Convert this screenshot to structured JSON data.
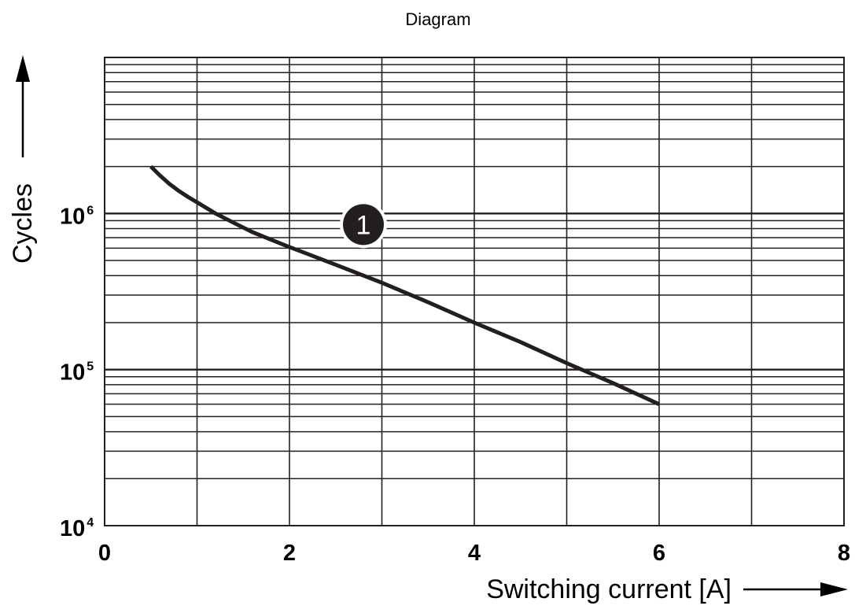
{
  "page": {
    "title": "Diagram"
  },
  "chart_data": {
    "type": "line",
    "title": "Diagram",
    "xlabel": "Switching current [A]",
    "ylabel": "Cycles",
    "x_scale": "linear",
    "y_scale": "log",
    "xlim": [
      0,
      8
    ],
    "ylim": [
      10000,
      10000000
    ],
    "grid": true,
    "x_ticks": [
      {
        "value": 0,
        "label": "0"
      },
      {
        "value": 2,
        "label": "2"
      },
      {
        "value": 4,
        "label": "4"
      },
      {
        "value": 6,
        "label": "6"
      },
      {
        "value": 8,
        "label": "8"
      }
    ],
    "y_ticks": [
      {
        "value": 10000,
        "base": "10",
        "exp": "4"
      },
      {
        "value": 100000,
        "base": "10",
        "exp": "5"
      },
      {
        "value": 1000000,
        "base": "10",
        "exp": "6"
      }
    ],
    "series": [
      {
        "x": [
          0.5,
          0.6,
          0.7,
          0.8,
          0.9,
          1.0,
          1.2,
          1.4,
          1.6,
          1.8,
          2.0,
          2.5,
          3.0,
          3.5,
          4.0,
          4.5,
          5.0,
          5.5,
          6.0
        ],
        "y": [
          2000000,
          1750000,
          1550000,
          1400000,
          1280000,
          1180000,
          1000000,
          870000,
          760000,
          680000,
          610000,
          470000,
          360000,
          270000,
          200000,
          150000,
          110000,
          82000,
          60000
        ]
      }
    ],
    "annotations": [
      {
        "label": "1",
        "x": 2.8,
        "y": 850000
      }
    ],
    "colors": {
      "line": "#231f20",
      "grid": "#231f20",
      "marker_fill": "#231f20",
      "marker_text": "#ffffff"
    }
  }
}
